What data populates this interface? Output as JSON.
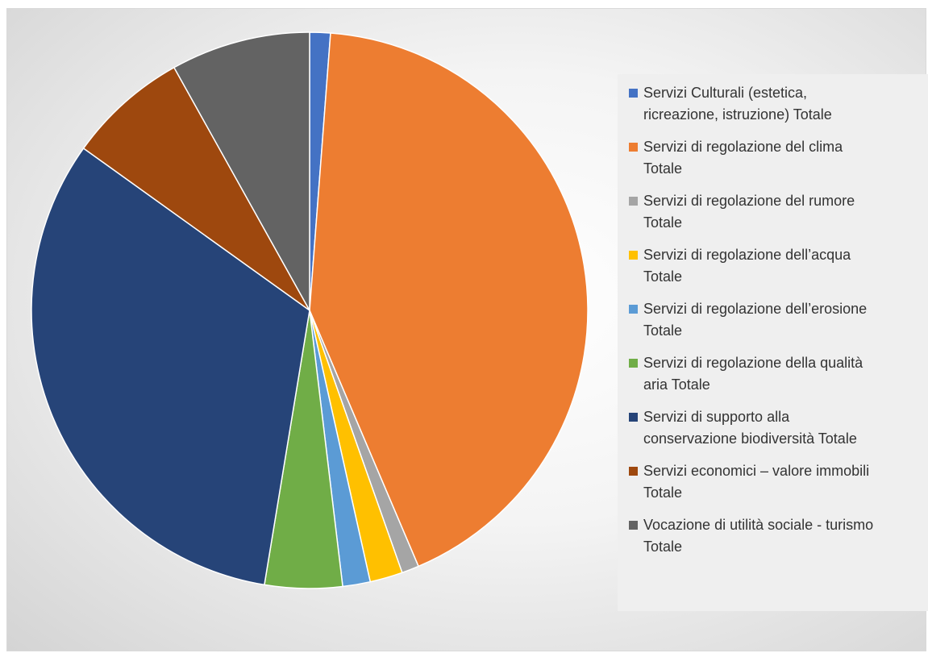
{
  "chart_data": {
    "type": "pie",
    "title": "",
    "legend_position": "right",
    "series": [
      {
        "name": "",
        "values": [
          1.2,
          42.4,
          1.0,
          1.9,
          1.6,
          4.5,
          32.3,
          7.0,
          8.1
        ]
      }
    ],
    "categories": [
      "Servizi Culturali (estetica, ricreazione, istruzione) Totale",
      "Servizi di regolazione del clima Totale",
      "Servizi di regolazione del rumore Totale",
      "Servizi di regolazione dell’acqua Totale",
      "Servizi di regolazione dell’erosione Totale",
      "Servizi di regolazione della qualità aria Totale",
      "Servizi di supporto alla conservazione biodiversità Totale",
      "Servizi economici – valore immobili Totale",
      "Vocazione di utilità sociale - turismo Totale"
    ],
    "legend_lines": [
      [
        "Servizi Culturali (estetica,",
        "ricreazione, istruzione) Totale"
      ],
      [
        "Servizi di regolazione del clima",
        "Totale"
      ],
      [
        "Servizi di regolazione del rumore",
        "Totale"
      ],
      [
        "Servizi di regolazione dell’acqua",
        "Totale"
      ],
      [
        "Servizi di regolazione dell’erosione",
        "Totale"
      ],
      [
        "Servizi di regolazione della qualità",
        "aria Totale"
      ],
      [
        "Servizi di supporto alla",
        "conservazione biodiversità Totale"
      ],
      [
        "Servizi economici – valore immobili",
        "Totale"
      ],
      [
        "Vocazione di utilità sociale - turismo",
        "Totale"
      ]
    ],
    "colors": [
      "#4472C4",
      "#ED7D31",
      "#A5A5A5",
      "#FFC000",
      "#5B9BD5",
      "#70AD47",
      "#264478",
      "#9E480E",
      "#636363"
    ],
    "start_angle": "12 o'clock",
    "direction": "clockwise"
  }
}
